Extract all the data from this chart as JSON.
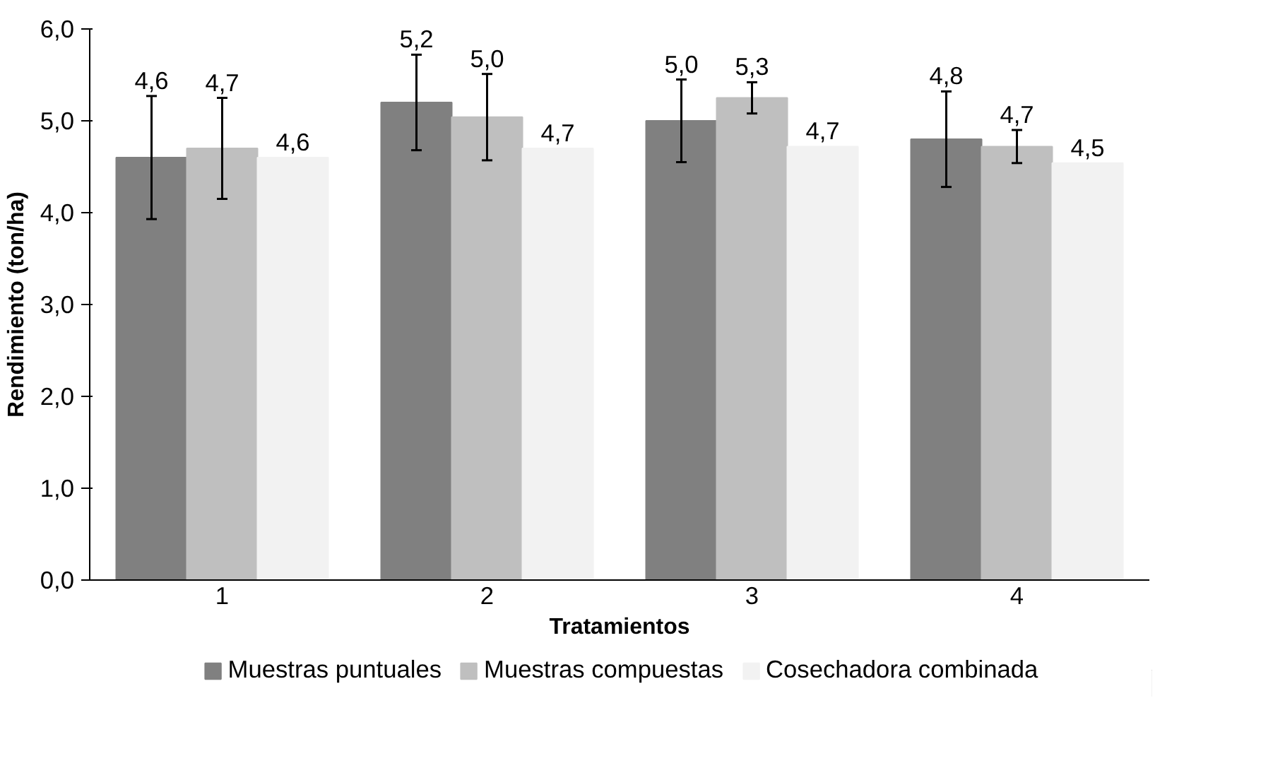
{
  "chart_data": {
    "type": "bar",
    "xlabel": "Tratamientos",
    "ylabel": "Rendimiento (ton/ha)",
    "categories": [
      "1",
      "2",
      "3",
      "4"
    ],
    "series": [
      {
        "name": "Muestras puntuales",
        "color": "#808080",
        "values": [
          4.6,
          5.2,
          5.0,
          4.8
        ],
        "errors": [
          0.67,
          0.52,
          0.45,
          0.52
        ],
        "value_labels": [
          "4,6",
          "5,2",
          "5,0",
          "4,8"
        ]
      },
      {
        "name": "Muestras compuestas",
        "color": "#bfbfbf",
        "values": [
          4.7,
          5.04,
          5.25,
          4.72
        ],
        "errors": [
          0.55,
          0.47,
          0.17,
          0.18
        ],
        "value_labels": [
          "4,7",
          "5,0",
          "5,3",
          "4,7"
        ]
      },
      {
        "name": "Cosechadora combinada",
        "color": "#f2f2f2",
        "values": [
          4.6,
          4.7,
          4.72,
          4.54
        ],
        "value_labels": [
          "4,6",
          "4,7",
          "4,7",
          "4,5"
        ]
      }
    ],
    "ylim": [
      0,
      6
    ],
    "yticks": [
      {
        "value": 0,
        "label": "0,0"
      },
      {
        "value": 1,
        "label": "1,0"
      },
      {
        "value": 2,
        "label": "2,0"
      },
      {
        "value": 3,
        "label": "3,0"
      },
      {
        "value": 4,
        "label": "4,0"
      },
      {
        "value": 5,
        "label": "5,0"
      },
      {
        "value": 6,
        "label": "6,0"
      }
    ],
    "grid": false,
    "legend": "bottom"
  }
}
